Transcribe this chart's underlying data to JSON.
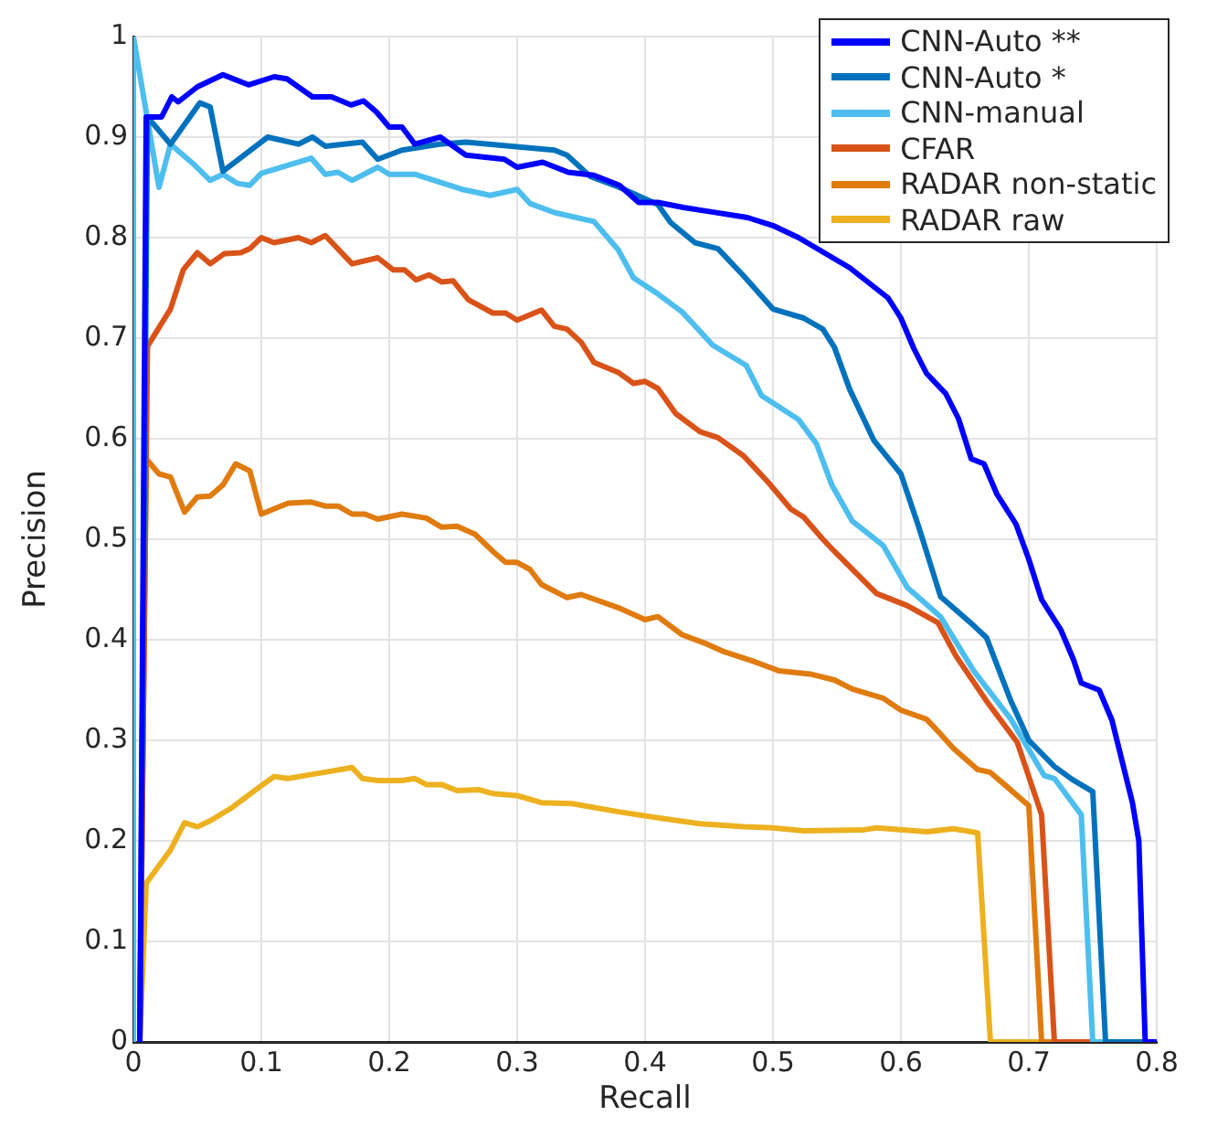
{
  "chart_data": {
    "type": "line",
    "xlabel": "Recall",
    "ylabel": "Precision",
    "xlim": [
      0,
      0.8
    ],
    "ylim": [
      0,
      1
    ],
    "xticks": [
      0,
      0.1,
      0.2,
      0.3,
      0.4,
      0.5,
      0.6,
      0.7,
      0.8
    ],
    "yticks": [
      0,
      0.1,
      0.2,
      0.3,
      0.4,
      0.5,
      0.6,
      0.7,
      0.8,
      0.9,
      1
    ],
    "grid": true,
    "legend": "top right",
    "marker": "none",
    "line_style": "solid",
    "series": [
      {
        "name": "CNN-Auto **",
        "color": "#0000ff",
        "x": [
          0.005,
          0.01,
          0.022,
          0.03,
          0.035,
          0.05,
          0.07,
          0.09,
          0.11,
          0.12,
          0.14,
          0.155,
          0.17,
          0.18,
          0.19,
          0.2,
          0.21,
          0.22,
          0.24,
          0.26,
          0.29,
          0.3,
          0.32,
          0.34,
          0.36,
          0.38,
          0.395,
          0.41,
          0.43,
          0.45,
          0.48,
          0.5,
          0.52,
          0.54,
          0.56,
          0.58,
          0.59,
          0.6,
          0.61,
          0.62,
          0.635,
          0.645,
          0.655,
          0.665,
          0.675,
          0.69,
          0.7,
          0.71,
          0.725,
          0.735,
          0.741,
          0.755,
          0.765,
          0.781,
          0.786,
          0.791,
          0.8
        ],
        "values": [
          0,
          0.92,
          0.92,
          0.94,
          0.935,
          0.95,
          0.962,
          0.952,
          0.96,
          0.958,
          0.94,
          0.94,
          0.932,
          0.936,
          0.925,
          0.91,
          0.91,
          0.893,
          0.9,
          0.882,
          0.878,
          0.87,
          0.875,
          0.865,
          0.862,
          0.852,
          0.835,
          0.835,
          0.83,
          0.826,
          0.82,
          0.812,
          0.8,
          0.785,
          0.77,
          0.75,
          0.74,
          0.72,
          0.69,
          0.665,
          0.645,
          0.62,
          0.58,
          0.575,
          0.545,
          0.515,
          0.48,
          0.44,
          0.41,
          0.38,
          0.357,
          0.35,
          0.32,
          0.238,
          0.2,
          0,
          0
        ]
      },
      {
        "name": "CNN-Auto *",
        "color": "#0072bd",
        "x": [
          0.005,
          0.011,
          0.029,
          0.052,
          0.06,
          0.07,
          0.105,
          0.129,
          0.14,
          0.15,
          0.179,
          0.191,
          0.21,
          0.239,
          0.26,
          0.329,
          0.339,
          0.357,
          0.38,
          0.41,
          0.42,
          0.439,
          0.457,
          0.477,
          0.5,
          0.524,
          0.539,
          0.548,
          0.56,
          0.579,
          0.6,
          0.614,
          0.631,
          0.657,
          0.667,
          0.686,
          0.7,
          0.72,
          0.734,
          0.75,
          0.76,
          0.8
        ],
        "values": [
          0,
          0.92,
          0.893,
          0.934,
          0.93,
          0.866,
          0.9,
          0.893,
          0.9,
          0.891,
          0.895,
          0.878,
          0.887,
          0.893,
          0.895,
          0.887,
          0.882,
          0.861,
          0.85,
          0.833,
          0.815,
          0.795,
          0.789,
          0.762,
          0.729,
          0.72,
          0.709,
          0.691,
          0.649,
          0.598,
          0.565,
          0.512,
          0.443,
          0.414,
          0.402,
          0.339,
          0.3,
          0.274,
          0.261,
          0.249,
          0,
          0
        ]
      },
      {
        "name": "CNN-manual",
        "color": "#4dbeee",
        "x": [
          0,
          0,
          0.02,
          0.029,
          0.048,
          0.06,
          0.07,
          0.081,
          0.091,
          0.1,
          0.139,
          0.15,
          0.16,
          0.171,
          0.191,
          0.2,
          0.22,
          0.257,
          0.279,
          0.3,
          0.31,
          0.329,
          0.36,
          0.379,
          0.391,
          0.41,
          0.429,
          0.453,
          0.479,
          0.491,
          0.52,
          0.534,
          0.546,
          0.562,
          0.586,
          0.605,
          0.631,
          0.657,
          0.686,
          0.712,
          0.72,
          0.741,
          0.75,
          0.8
        ],
        "values": [
          0,
          1,
          0.85,
          0.893,
          0.872,
          0.857,
          0.863,
          0.854,
          0.852,
          0.864,
          0.879,
          0.863,
          0.865,
          0.857,
          0.87,
          0.863,
          0.863,
          0.848,
          0.842,
          0.848,
          0.834,
          0.825,
          0.816,
          0.788,
          0.76,
          0.744,
          0.726,
          0.693,
          0.673,
          0.643,
          0.619,
          0.595,
          0.554,
          0.518,
          0.494,
          0.452,
          0.423,
          0.369,
          0.321,
          0.265,
          0.262,
          0.226,
          0,
          0
        ]
      },
      {
        "name": "CFAR",
        "color": "#d95319",
        "x": [
          0.005,
          0.011,
          0.029,
          0.039,
          0.05,
          0.06,
          0.071,
          0.084,
          0.091,
          0.1,
          0.11,
          0.129,
          0.139,
          0.15,
          0.171,
          0.191,
          0.203,
          0.212,
          0.221,
          0.231,
          0.241,
          0.25,
          0.262,
          0.281,
          0.291,
          0.3,
          0.319,
          0.329,
          0.339,
          0.35,
          0.36,
          0.379,
          0.391,
          0.4,
          0.41,
          0.424,
          0.443,
          0.457,
          0.477,
          0.496,
          0.514,
          0.524,
          0.539,
          0.548,
          0.581,
          0.605,
          0.629,
          0.643,
          0.667,
          0.691,
          0.71,
          0.72,
          0.8
        ],
        "values": [
          0,
          0.692,
          0.729,
          0.768,
          0.785,
          0.774,
          0.784,
          0.785,
          0.789,
          0.8,
          0.795,
          0.8,
          0.795,
          0.802,
          0.774,
          0.78,
          0.768,
          0.768,
          0.758,
          0.763,
          0.756,
          0.757,
          0.738,
          0.725,
          0.725,
          0.718,
          0.728,
          0.712,
          0.709,
          0.696,
          0.676,
          0.666,
          0.655,
          0.657,
          0.65,
          0.625,
          0.607,
          0.601,
          0.583,
          0.557,
          0.53,
          0.522,
          0.5,
          0.488,
          0.446,
          0.434,
          0.417,
          0.384,
          0.339,
          0.298,
          0.226,
          0,
          0
        ]
      },
      {
        "name": "RADAR non-static",
        "color": "#e07b0e",
        "x": [
          0.005,
          0.01,
          0.02,
          0.029,
          0.04,
          0.05,
          0.06,
          0.07,
          0.08,
          0.091,
          0.1,
          0.121,
          0.139,
          0.15,
          0.16,
          0.171,
          0.181,
          0.191,
          0.21,
          0.229,
          0.241,
          0.253,
          0.267,
          0.281,
          0.291,
          0.3,
          0.31,
          0.319,
          0.339,
          0.35,
          0.379,
          0.4,
          0.41,
          0.429,
          0.448,
          0.462,
          0.486,
          0.505,
          0.529,
          0.548,
          0.562,
          0.586,
          0.6,
          0.62,
          0.629,
          0.641,
          0.66,
          0.67,
          0.681,
          0.7,
          0.71,
          0.8
        ],
        "values": [
          0,
          0.58,
          0.565,
          0.562,
          0.527,
          0.542,
          0.543,
          0.554,
          0.575,
          0.568,
          0.525,
          0.536,
          0.537,
          0.533,
          0.533,
          0.525,
          0.525,
          0.52,
          0.525,
          0.521,
          0.512,
          0.513,
          0.505,
          0.488,
          0.477,
          0.477,
          0.47,
          0.455,
          0.442,
          0.445,
          0.432,
          0.42,
          0.423,
          0.405,
          0.396,
          0.388,
          0.378,
          0.369,
          0.366,
          0.36,
          0.351,
          0.342,
          0.33,
          0.321,
          0.309,
          0.292,
          0.271,
          0.268,
          0.256,
          0.235,
          0,
          0
        ]
      },
      {
        "name": "RADAR raw",
        "color": "#edb120",
        "x": [
          0.005,
          0.01,
          0.029,
          0.04,
          0.05,
          0.06,
          0.077,
          0.098,
          0.11,
          0.121,
          0.139,
          0.153,
          0.171,
          0.179,
          0.191,
          0.21,
          0.22,
          0.229,
          0.241,
          0.253,
          0.27,
          0.281,
          0.3,
          0.319,
          0.343,
          0.379,
          0.41,
          0.443,
          0.477,
          0.5,
          0.524,
          0.571,
          0.581,
          0.62,
          0.641,
          0.66,
          0.67,
          0.79
        ],
        "values": [
          0,
          0.158,
          0.191,
          0.218,
          0.214,
          0.22,
          0.233,
          0.253,
          0.264,
          0.262,
          0.266,
          0.269,
          0.273,
          0.262,
          0.26,
          0.26,
          0.262,
          0.256,
          0.256,
          0.25,
          0.251,
          0.247,
          0.245,
          0.238,
          0.237,
          0.229,
          0.223,
          0.217,
          0.214,
          0.213,
          0.21,
          0.211,
          0.213,
          0.209,
          0.212,
          0.208,
          0,
          0
        ]
      }
    ]
  }
}
